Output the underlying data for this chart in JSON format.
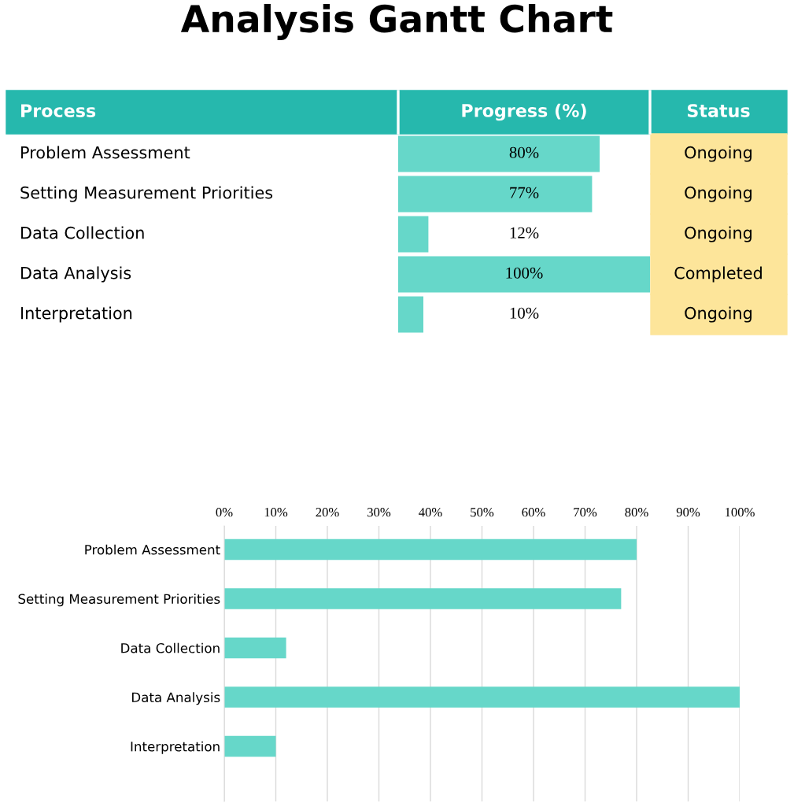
{
  "chart_data": [
    {
      "type": "bar",
      "orientation": "horizontal",
      "title": "Analysis Gantt Chart",
      "ylabel": "Process",
      "xlabel": "Progress (%)",
      "y2label": "Status",
      "categories": [
        "Problem Assessment",
        "Setting Measurement Priorities",
        "Data Collection",
        "Data Analysis",
        "Interpretation",
        null,
        null,
        null
      ],
      "values": [
        80,
        77,
        12,
        100,
        10,
        null,
        null,
        null
      ],
      "color": "#66d7c9",
      "value_labels": [
        "80%",
        "77%",
        "12%",
        "100%",
        "10%",
        null,
        null,
        null
      ],
      "annotations": [
        "Ongoing",
        "Ongoing",
        "Ongoing",
        "Completed",
        "Ongoing"
      ]
    },
    {
      "type": "bar",
      "orientation": "horizontal",
      "categories": [
        "Problem Assessment",
        "Setting Measurement Priorities",
        "Data Collection",
        "Data Analysis",
        "Interpretation"
      ],
      "values": [
        80,
        77,
        12,
        100,
        10
      ],
      "color": "#66d7c9",
      "xlim": [
        0,
        100
      ],
      "xticks": [
        {
          "value": 0,
          "label": "0%"
        },
        {
          "value": 10,
          "label": "10%"
        },
        {
          "value": 20,
          "label": "20%"
        },
        {
          "value": 30,
          "label": "30%"
        },
        {
          "value": 40,
          "label": "40%"
        },
        {
          "value": 50,
          "label": "50%"
        },
        {
          "value": 60,
          "label": "60%"
        },
        {
          "value": 70,
          "label": "70%"
        },
        {
          "value": 80,
          "label": "80%"
        },
        {
          "value": 90,
          "label": "90%"
        },
        {
          "value": 100,
          "label": "100%"
        }
      ],
      "grid": "x"
    }
  ]
}
